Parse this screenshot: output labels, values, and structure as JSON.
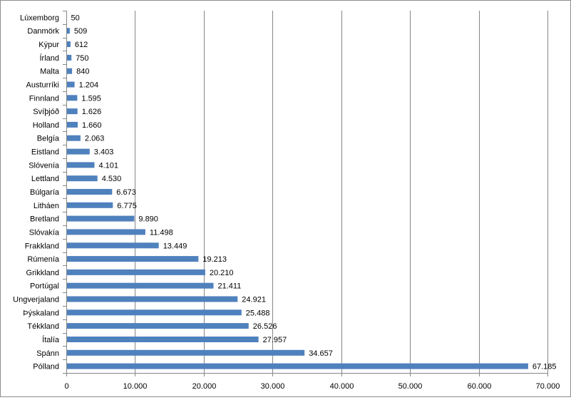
{
  "chart_data": {
    "type": "bar",
    "orientation": "horizontal",
    "title": "",
    "xlabel": "",
    "ylabel": "",
    "categories": [
      "Lúxemborg",
      "Danmörk",
      "Kýpur",
      "Írland",
      "Malta",
      "Austurríki",
      "Finnland",
      "Svíþjóð",
      "Holland",
      "Belgía",
      "Eistland",
      "Slóvenía",
      "Lettland",
      "Búlgaría",
      "Litháen",
      "Bretland",
      "Slóvakía",
      "Frakkland",
      "Rúmenía",
      "Grikkland",
      "Portúgal",
      "Ungverjaland",
      "Þýskaland",
      "Tékkland",
      "Ítalía",
      "Spánn",
      "Pólland"
    ],
    "values": [
      50,
      509,
      612,
      750,
      840,
      1204,
      1595,
      1626,
      1660,
      2063,
      3403,
      4101,
      4530,
      6673,
      6775,
      9890,
      11498,
      13449,
      19213,
      20210,
      21411,
      24921,
      25488,
      26526,
      27957,
      34657,
      67185
    ],
    "value_labels": [
      "50",
      "509",
      "612",
      "750",
      "840",
      "1.204",
      "1.595",
      "1.626",
      "1.660",
      "2.063",
      "3.403",
      "4.101",
      "4.530",
      "6.673",
      "6.775",
      "9.890",
      "11.498",
      "13.449",
      "19.213",
      "20.210",
      "21.411",
      "24.921",
      "25.488",
      "26.526",
      "27.957",
      "34.657",
      "67.185"
    ],
    "xlim": [
      0,
      70000
    ],
    "x_ticks": [
      0,
      10000,
      20000,
      30000,
      40000,
      50000,
      60000,
      70000
    ],
    "x_tick_labels": [
      "0",
      "10.000",
      "20.000",
      "30.000",
      "40.000",
      "50.000",
      "60.000",
      "70.000"
    ],
    "grid": "vertical",
    "legend": "none",
    "colors": {
      "bar": "#4f81bd",
      "grid": "#868686",
      "axis": "#868686"
    }
  }
}
